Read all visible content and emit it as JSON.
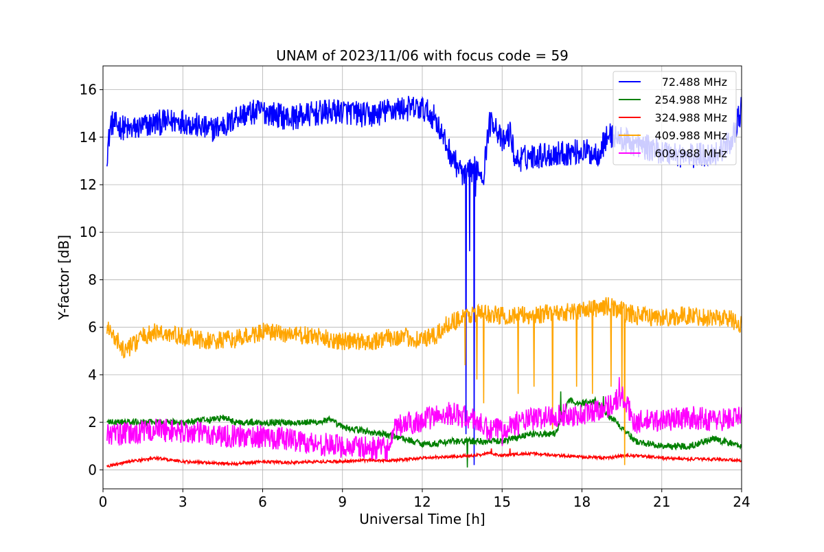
{
  "chart_data": {
    "type": "line",
    "title": "UNAM of 2023/11/06 with focus code = 59",
    "xlabel": "Universal Time [h]",
    "ylabel": "Y-factor [dB]",
    "xlim": [
      0,
      24
    ],
    "ylim": [
      -0.8,
      17
    ],
    "xticks": [
      0,
      3,
      6,
      9,
      12,
      15,
      18,
      21,
      24
    ],
    "yticks": [
      0,
      2,
      4,
      6,
      8,
      10,
      12,
      14,
      16
    ],
    "grid": true,
    "legend_position": "top-right",
    "series": [
      {
        "name": "  72.488 MHz",
        "color": "#0000ff",
        "noise": 0.55,
        "x": [
          0.15,
          0.3,
          1,
          2,
          3,
          4,
          4.8,
          5,
          6,
          7,
          8,
          9,
          10,
          11,
          12,
          12.5,
          12.8,
          13.2,
          13.6,
          14,
          14.3,
          14.5,
          14.7,
          15,
          15.3,
          15.5,
          16,
          17,
          18,
          18.6,
          19,
          20,
          21,
          22,
          23,
          23.6,
          24
        ],
        "y": [
          13.3,
          14.6,
          14.3,
          14.6,
          14.7,
          14.3,
          14.6,
          14.9,
          15.1,
          14.8,
          15.0,
          15.1,
          14.9,
          15.2,
          15.2,
          14.8,
          13.9,
          13.0,
          12.3,
          12.8,
          12.4,
          14.5,
          14.7,
          13.7,
          14.2,
          13.0,
          13.2,
          13.3,
          13.4,
          13.3,
          14.1,
          13.7,
          13.4,
          13.2,
          13.3,
          13.8,
          15.2
        ],
        "spikes": [
          [
            13.65,
            1.5
          ],
          [
            13.78,
            9.2
          ],
          [
            13.95,
            0.2
          ],
          [
            14.0,
            11.5
          ]
        ]
      },
      {
        "name": "254.988 MHz",
        "color": "#008000",
        "noise": 0.14,
        "x": [
          0.15,
          1,
          2,
          3,
          4,
          4.5,
          5,
          6,
          7,
          8,
          8.5,
          9,
          10,
          11,
          12,
          12.5,
          13,
          14,
          15,
          16,
          17,
          17.5,
          18,
          18.5,
          19,
          19.5,
          20,
          21,
          22,
          23,
          24
        ],
        "y": [
          2.0,
          2.0,
          2.0,
          2.0,
          2.1,
          2.2,
          2.0,
          2.0,
          2.0,
          2.0,
          2.1,
          1.8,
          1.6,
          1.4,
          1.1,
          1.1,
          1.2,
          1.2,
          1.2,
          1.5,
          1.5,
          2.9,
          2.8,
          2.9,
          2.3,
          1.8,
          1.2,
          1.0,
          1.0,
          1.3,
          1.0
        ],
        "spikes": [
          [
            17.2,
            3.3
          ],
          [
            18.8,
            3.1
          ],
          [
            13.7,
            0.1
          ]
        ]
      },
      {
        "name": "324.988 MHz",
        "color": "#ff0000",
        "noise": 0.06,
        "x": [
          0.15,
          1,
          2,
          3,
          4,
          5,
          6,
          7,
          8,
          9,
          10,
          11,
          12,
          13,
          14,
          14.5,
          15,
          16,
          17,
          18,
          19,
          19.5,
          20,
          21,
          22,
          23,
          24
        ],
        "y": [
          0.15,
          0.35,
          0.5,
          0.35,
          0.3,
          0.25,
          0.35,
          0.3,
          0.35,
          0.35,
          0.4,
          0.4,
          0.5,
          0.55,
          0.6,
          0.7,
          0.6,
          0.7,
          0.6,
          0.55,
          0.5,
          0.6,
          0.6,
          0.5,
          0.45,
          0.45,
          0.4
        ],
        "spikes": [
          [
            14.6,
            0.9
          ],
          [
            15.3,
            0.9
          ]
        ]
      },
      {
        "name": "409.988 MHz",
        "color": "#ffa500",
        "noise": 0.4,
        "x": [
          0.15,
          0.8,
          1.5,
          2,
          3,
          4,
          5,
          6,
          7,
          8,
          9,
          10,
          11,
          12,
          12.5,
          13,
          14,
          15,
          16,
          17,
          18,
          19,
          20,
          21,
          22,
          23,
          23.5,
          24
        ],
        "y": [
          6.0,
          5.0,
          5.6,
          5.8,
          5.6,
          5.4,
          5.5,
          5.8,
          5.7,
          5.6,
          5.4,
          5.4,
          5.6,
          5.5,
          5.6,
          6.2,
          6.6,
          6.5,
          6.5,
          6.6,
          6.7,
          6.9,
          6.5,
          6.4,
          6.5,
          6.4,
          6.4,
          6.1
        ],
        "spikes": [
          [
            14.05,
            3.8
          ],
          [
            14.3,
            2.8
          ],
          [
            15.6,
            3.2
          ],
          [
            16.2,
            3.5
          ],
          [
            16.9,
            1.7
          ],
          [
            17.8,
            3.5
          ],
          [
            18.4,
            3.2
          ],
          [
            19.1,
            3.5
          ],
          [
            19.5,
            3.1
          ],
          [
            19.6,
            0.2
          ],
          [
            13.6,
            4.4
          ]
        ]
      },
      {
        "name": "609.988 MHz",
        "color": "#ff00ff",
        "noise": 0.5,
        "x": [
          0.15,
          1,
          2,
          3,
          4,
          5,
          6,
          7,
          8,
          9,
          10,
          10.8,
          11,
          12,
          13,
          14,
          14.5,
          15,
          16,
          17,
          18,
          19,
          19.5,
          20,
          21,
          22,
          23,
          24
        ],
        "y": [
          1.5,
          1.5,
          1.7,
          1.6,
          1.5,
          1.4,
          1.4,
          1.3,
          1.1,
          1.0,
          0.9,
          0.9,
          1.8,
          2.1,
          2.4,
          2.1,
          1.6,
          1.8,
          2.1,
          2.3,
          2.3,
          2.7,
          3.1,
          2.0,
          2.1,
          2.2,
          2.1,
          2.2
        ],
        "spikes": [
          [
            19.4,
            3.9
          ],
          [
            15.0,
            1.0
          ]
        ]
      }
    ]
  }
}
